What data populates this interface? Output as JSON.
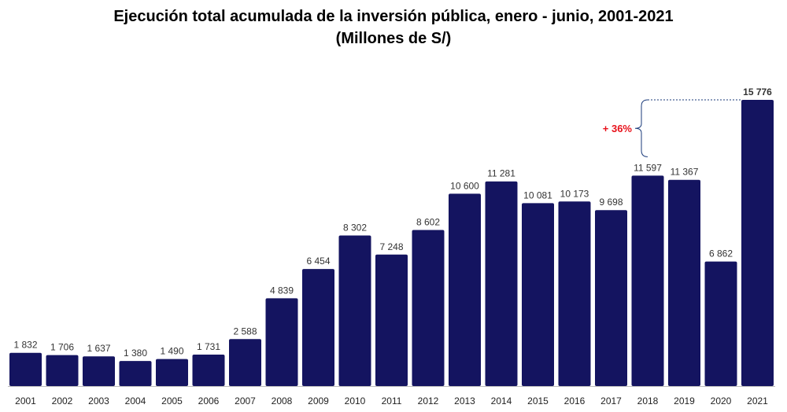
{
  "chart_data": {
    "type": "bar",
    "title": "Ejecución total acumulada de la inversión pública, enero - junio, 2001-2021",
    "subtitle": "(Millones de S/)",
    "categories": [
      "2001",
      "2002",
      "2003",
      "2004",
      "2005",
      "2006",
      "2007",
      "2008",
      "2009",
      "2010",
      "2011",
      "2012",
      "2013",
      "2014",
      "2015",
      "2016",
      "2017",
      "2018",
      "2019",
      "2020",
      "2021"
    ],
    "values": [
      1832,
      1706,
      1637,
      1380,
      1490,
      1731,
      2588,
      4839,
      6454,
      8302,
      7248,
      8602,
      10600,
      11281,
      10081,
      10173,
      9698,
      11597,
      11367,
      6862,
      15776
    ],
    "value_labels": [
      "1 832",
      "1 706",
      "1 637",
      "1 380",
      "1 490",
      "1 731",
      "2 588",
      "4 839",
      "6 454",
      "8 302",
      "7 248",
      "8 602",
      "10 600",
      "11 281",
      "10 081",
      "10 173",
      "9 698",
      "11 597",
      "11 367",
      "6 862",
      "15 776"
    ],
    "ylim": [
      0,
      16500
    ],
    "grid": false,
    "xlabel": "",
    "ylabel": "",
    "annotation": {
      "text": "+ 36%",
      "from": "2018",
      "to": "2021"
    },
    "colors": {
      "bar": "#141460",
      "highlight_label": "#1f3f8f",
      "annotation": "#e8121b",
      "bracket": "#1a3a7a"
    }
  }
}
